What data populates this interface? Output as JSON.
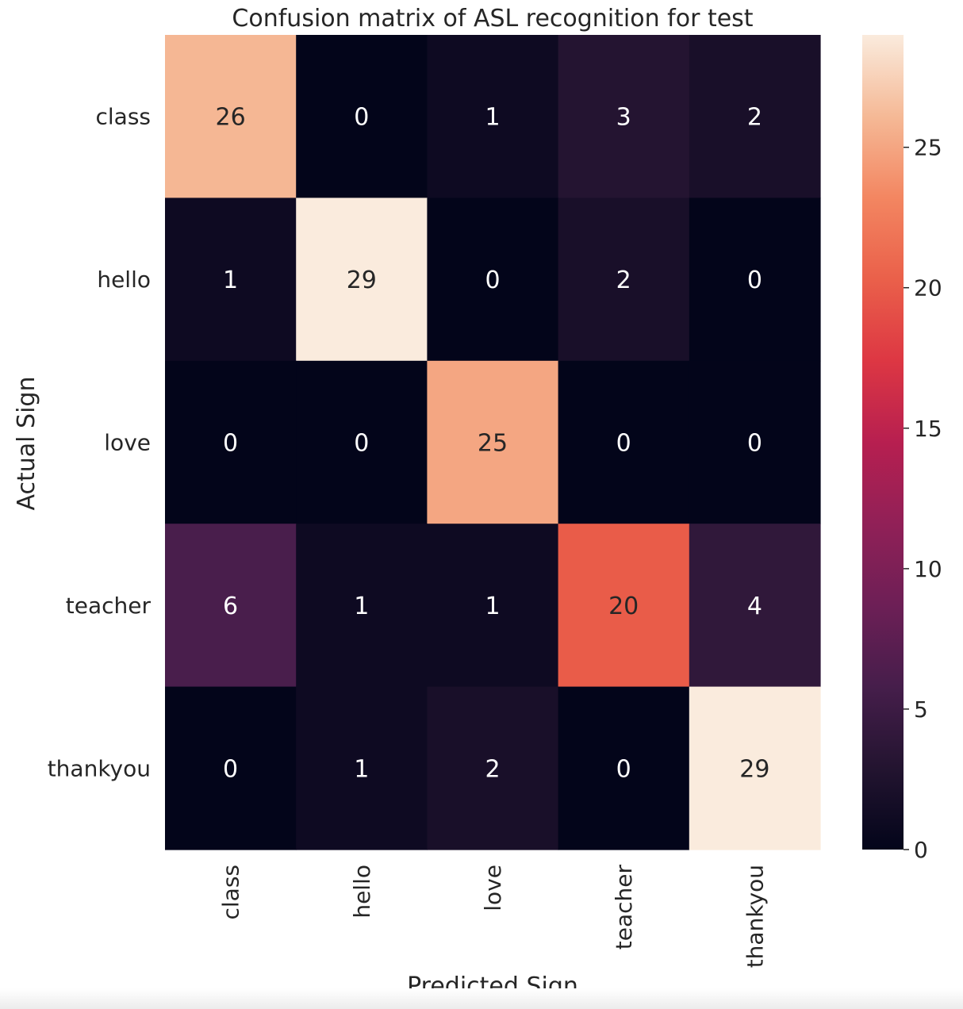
{
  "chart_data": {
    "type": "heatmap",
    "title": "Confusion matrix of ASL recognition for test",
    "xlabel": "Predicted Sign",
    "ylabel": "Actual Sign",
    "x_categories": [
      "class",
      "hello",
      "love",
      "teacher",
      "thankyou"
    ],
    "y_categories": [
      "class",
      "hello",
      "love",
      "teacher",
      "thankyou"
    ],
    "values": [
      [
        26,
        0,
        1,
        3,
        2
      ],
      [
        1,
        29,
        0,
        2,
        0
      ],
      [
        0,
        0,
        25,
        0,
        0
      ],
      [
        6,
        1,
        1,
        20,
        4
      ],
      [
        0,
        1,
        2,
        0,
        29
      ]
    ],
    "colorbar": {
      "min": 0,
      "max": 29,
      "ticks": [
        0,
        5,
        10,
        15,
        20,
        25
      ],
      "colormap": "rocket"
    },
    "grid": false,
    "annotations": true
  }
}
